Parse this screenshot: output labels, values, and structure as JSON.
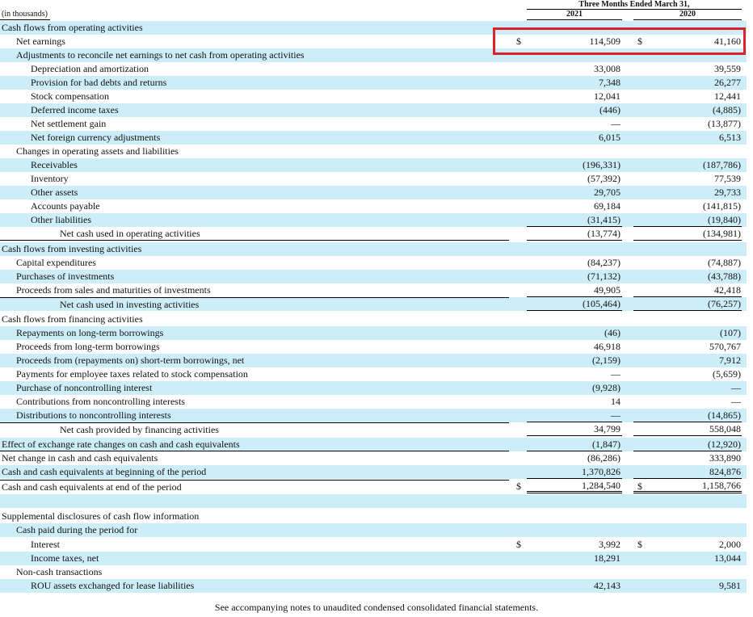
{
  "header": {
    "period": "Three Months Ended March 31,",
    "year1": "2021",
    "year2": "2020",
    "unit": "(in thousands)"
  },
  "colors": {
    "row_shade": "#cdeef8",
    "highlight_border": "#e0202a"
  },
  "rows": [
    {
      "label": "Cash flows from operating activities",
      "indent": 0,
      "shade": true
    },
    {
      "label": "Net earnings",
      "indent": 1,
      "shade": false,
      "c1": "$",
      "v1": "114,509",
      "c2": "$",
      "v2": "41,160"
    },
    {
      "label": "Adjustments to reconcile net earnings to net cash from operating activities",
      "indent": 1,
      "shade": true
    },
    {
      "label": "Depreciation and amortization",
      "indent": 2,
      "shade": false,
      "v1": "33,008",
      "v2": "39,559"
    },
    {
      "label": "Provision for bad debts and returns",
      "indent": 2,
      "shade": true,
      "v1": "7,348",
      "v2": "26,277"
    },
    {
      "label": "Stock compensation",
      "indent": 2,
      "shade": false,
      "v1": "12,041",
      "v2": "12,441"
    },
    {
      "label": "Deferred income taxes",
      "indent": 2,
      "shade": true,
      "v1": "(446)",
      "v2": "(4,885)"
    },
    {
      "label": "Net settlement gain",
      "indent": 2,
      "shade": false,
      "v1": "—",
      "v2": "(13,877)"
    },
    {
      "label": "Net foreign currency adjustments",
      "indent": 2,
      "shade": true,
      "v1": "6,015",
      "v2": "6,513"
    },
    {
      "label": "Changes in operating assets and liabilities",
      "indent": 1,
      "shade": false
    },
    {
      "label": "Receivables",
      "indent": 2,
      "shade": true,
      "v1": "(196,331)",
      "v2": "(187,786)"
    },
    {
      "label": "Inventory",
      "indent": 2,
      "shade": false,
      "v1": "(57,392)",
      "v2": "77,539"
    },
    {
      "label": "Other assets",
      "indent": 2,
      "shade": true,
      "v1": "29,705",
      "v2": "29,733"
    },
    {
      "label": "Accounts payable",
      "indent": 2,
      "shade": false,
      "v1": "69,184",
      "v2": "(141,815)"
    },
    {
      "label": "Other liabilities",
      "indent": 2,
      "shade": true,
      "v1": "(31,415)",
      "v2": "(19,840)",
      "valbot": true
    },
    {
      "label": "Net cash used in operating activities",
      "indent": 3,
      "shade": false,
      "v1": "(13,774)",
      "v2": "(134,981)",
      "lblbot": true,
      "valbot": true
    },
    {
      "label": "Cash flows from investing activities",
      "indent": 0,
      "shade": true
    },
    {
      "label": "Capital expenditures",
      "indent": 1,
      "shade": false,
      "v1": "(84,237)",
      "v2": "(74,887)"
    },
    {
      "label": "Purchases of investments",
      "indent": 1,
      "shade": true,
      "v1": "(71,132)",
      "v2": "(43,788)"
    },
    {
      "label": "Proceeds from sales and maturities of investments",
      "indent": 1,
      "shade": false,
      "v1": "49,905",
      "v2": "42,418",
      "valbot": true
    },
    {
      "label": "Net cash used in investing activities",
      "indent": 3,
      "shade": true,
      "v1": "(105,464)",
      "v2": "(76,257)",
      "lbltop": true,
      "valbot": true
    },
    {
      "label": "Cash flows from financing activities",
      "indent": 0,
      "shade": false
    },
    {
      "label": "Repayments on long-term borrowings",
      "indent": 1,
      "shade": true,
      "v1": "(46)",
      "v2": "(107)"
    },
    {
      "label": "Proceeds from long-term borrowings",
      "indent": 1,
      "shade": false,
      "v1": "46,918",
      "v2": "570,767"
    },
    {
      "label": "Proceeds from (repayments on) short-term borrowings, net",
      "indent": 1,
      "shade": true,
      "v1": "(2,159)",
      "v2": "7,912"
    },
    {
      "label": "Payments for employee taxes related to stock compensation",
      "indent": 1,
      "shade": false,
      "v1": "—",
      "v2": "(5,659)"
    },
    {
      "label": "Purchase of noncontrolling interest",
      "indent": 1,
      "shade": true,
      "v1": "(9,928)",
      "v2": "—"
    },
    {
      "label": "Contributions from noncontrolling interests",
      "indent": 1,
      "shade": false,
      "v1": "14",
      "v2": "—"
    },
    {
      "label": "Distributions to noncontrolling interests",
      "indent": 1,
      "shade": true,
      "v1": "—",
      "v2": "(14,865)",
      "valbot": true
    },
    {
      "label": "Net cash provided by financing activities",
      "indent": 3,
      "shade": false,
      "v1": "34,799",
      "v2": "558,048",
      "lbltop": true,
      "valbot": true
    },
    {
      "label": "Effect of exchange rate changes on cash and cash equivalents",
      "indent": 0,
      "shade": true,
      "v1": "(1,847)",
      "v2": "(12,920)",
      "lblbot": true,
      "valbot": true
    },
    {
      "label": "Net change in cash and cash equivalents",
      "indent": 0,
      "shade": false,
      "v1": "(86,286)",
      "v2": "333,890"
    },
    {
      "label": "Cash and cash equivalents at beginning of the period",
      "indent": 0,
      "shade": true,
      "v1": "1,370,826",
      "v2": "824,876",
      "valbot": true
    },
    {
      "label": "Cash and cash equivalents at end of the period",
      "indent": 0,
      "shade": false,
      "c1": "$",
      "v1": "1,284,540",
      "c2": "$",
      "v2": "1,158,766",
      "lbltop": true,
      "dbl": true
    },
    {
      "label": "",
      "indent": 0,
      "shade": true
    },
    {
      "label": "Supplemental disclosures of cash flow information",
      "indent": 0,
      "shade": false
    },
    {
      "label": "Cash paid during the period for",
      "indent": 1,
      "shade": true
    },
    {
      "label": "Interest",
      "indent": 2,
      "shade": false,
      "c1": "$",
      "v1": "3,992",
      "c2": "$",
      "v2": "2,000"
    },
    {
      "label": "Income taxes, net",
      "indent": 2,
      "shade": true,
      "v1": "18,291",
      "v2": "13,044"
    },
    {
      "label": "Non-cash transactions",
      "indent": 1,
      "shade": false
    },
    {
      "label": "ROU assets exchanged for lease liabilities",
      "indent": 2,
      "shade": true,
      "v1": "42,143",
      "v2": "9,581"
    }
  ],
  "footnote": "See accompanying notes to unaudited condensed consolidated financial statements."
}
